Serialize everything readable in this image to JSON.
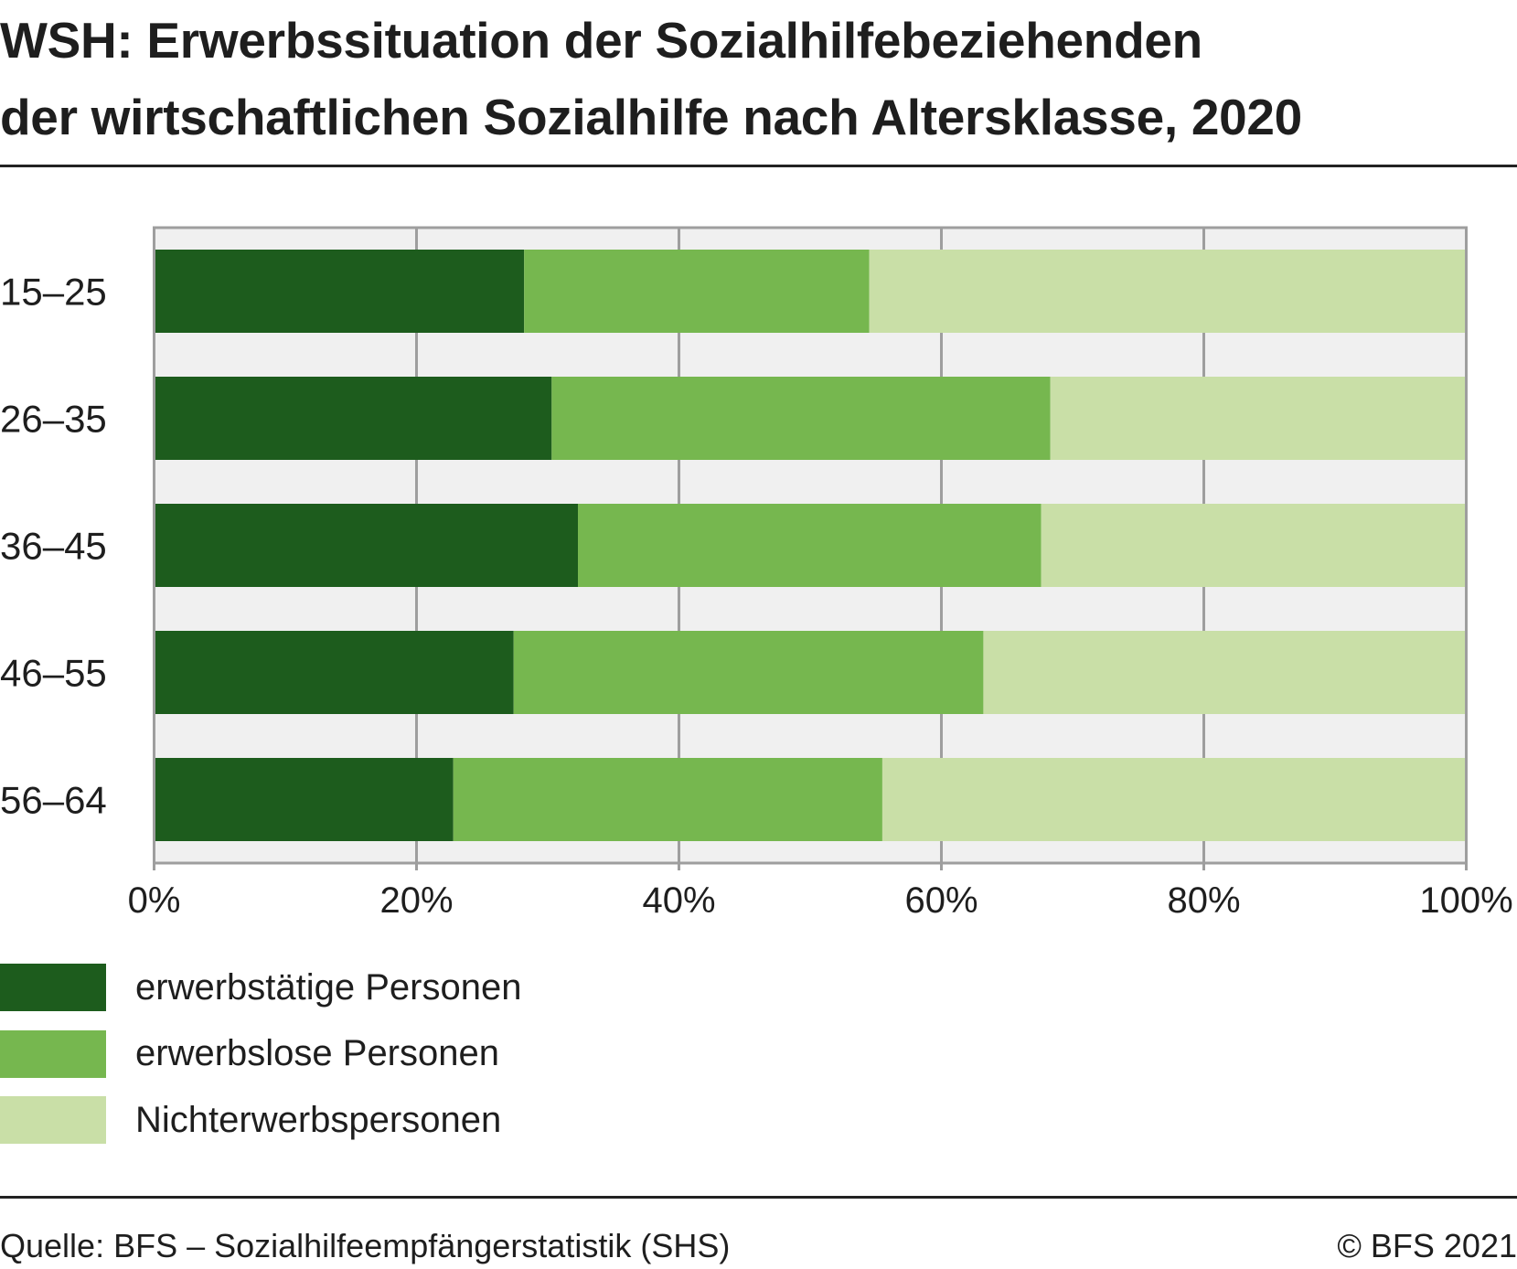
{
  "title": {
    "line1": "WSH: Erwerbssituation der Sozialhilfebeziehenden",
    "line2": "der wirtschaftlichen Sozialhilfe nach Altersklasse, 2020"
  },
  "footer": {
    "source": "Quelle: BFS – Sozialhilfeempfängerstatistik (SHS)",
    "copyright": "© BFS 2021"
  },
  "chart_data": {
    "type": "bar",
    "orientation": "horizontal",
    "stacked": true,
    "percent_stacked": true,
    "title": "WSH: Erwerbssituation der Sozialhilfebeziehenden der wirtschaftlichen Sozialhilfe nach Altersklasse, 2020",
    "categories": [
      "15–25",
      "26–35",
      "36–45",
      "46–55",
      "56–64"
    ],
    "series": [
      {
        "name": "erwerbstätige Personen",
        "color": "#1d5c1d",
        "values": [
          28.2,
          30.3,
          32.3,
          27.4,
          22.8
        ]
      },
      {
        "name": "erwerbslose Personen",
        "color": "#76b74f",
        "values": [
          26.3,
          38.0,
          35.3,
          35.8,
          32.7
        ]
      },
      {
        "name": "Nichterwerbspersonen",
        "color": "#c9dfa7",
        "values": [
          45.5,
          31.7,
          32.4,
          36.8,
          44.5
        ]
      }
    ],
    "xlim": [
      0,
      100
    ],
    "xticks": [
      "0%",
      "20%",
      "40%",
      "60%",
      "80%",
      "100%"
    ],
    "grid": true,
    "legend_position": "bottom-left",
    "plot_background": "#f0f0f0"
  }
}
